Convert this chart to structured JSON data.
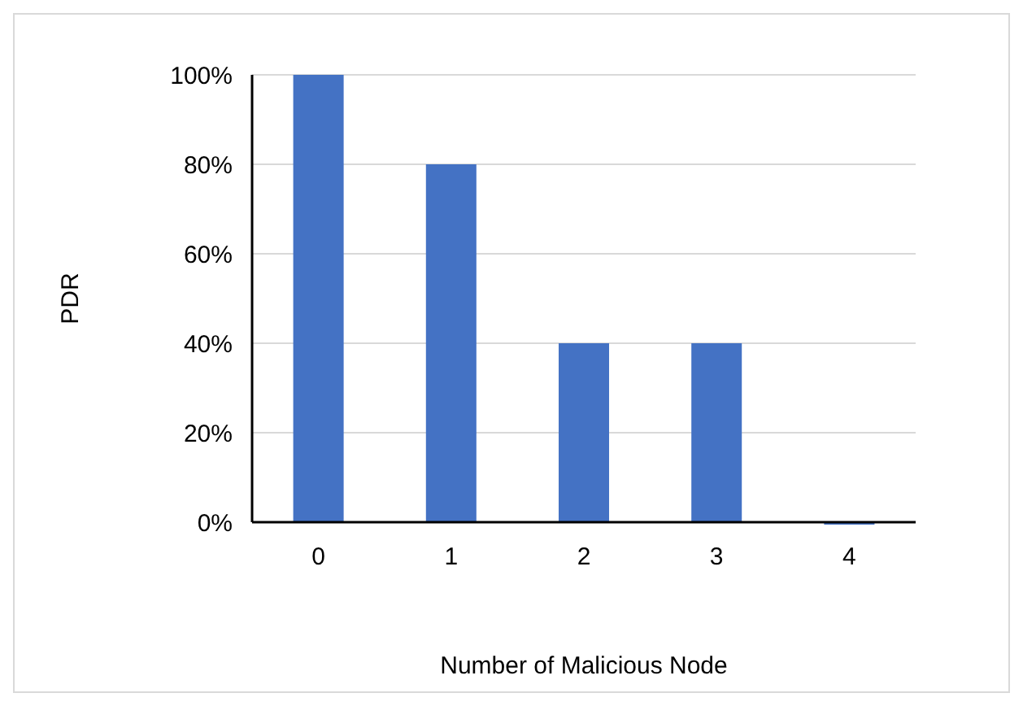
{
  "chart_data": {
    "type": "bar",
    "xlabel": "Number of Malicious Node",
    "ylabel": "PDR",
    "categories": [
      "0",
      "1",
      "2",
      "3",
      "4"
    ],
    "values": [
      100,
      80,
      40,
      40,
      0
    ],
    "color": "#4472c4",
    "ylim": [
      0,
      100
    ],
    "yticks": [
      {
        "value": 0,
        "label": "0%"
      },
      {
        "value": 20,
        "label": "20%"
      },
      {
        "value": 40,
        "label": "40%"
      },
      {
        "value": 60,
        "label": "60%"
      },
      {
        "value": 80,
        "label": "80%"
      },
      {
        "value": 100,
        "label": "100%"
      }
    ],
    "grid": "y"
  }
}
